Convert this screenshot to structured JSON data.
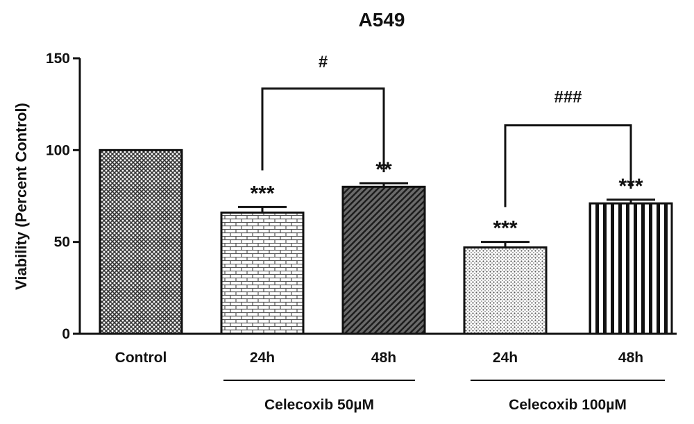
{
  "chart_data": {
    "type": "bar",
    "title": "A549",
    "ylabel": "Viability (Percent Control)",
    "xlabel": "",
    "ylim": [
      0,
      150
    ],
    "yticks": [
      0,
      50,
      100,
      150
    ],
    "categories": [
      "Control",
      "24h",
      "48h",
      "24h",
      "48h"
    ],
    "values": [
      100,
      66,
      80,
      47,
      71
    ],
    "errors": [
      0,
      3,
      2,
      3,
      2
    ],
    "significance": [
      "",
      "***",
      "**",
      "***",
      "***"
    ],
    "fill_patterns": [
      "crosshatch",
      "brick",
      "diagonal",
      "dots",
      "vertical-stripes"
    ],
    "groups": [
      {
        "label": "Celecoxib 50µM",
        "members": [
          1,
          2
        ]
      },
      {
        "label": "Celecoxib 100µM",
        "members": [
          3,
          4
        ]
      }
    ],
    "comparisons": [
      {
        "from": 1,
        "to": 2,
        "label": "#"
      },
      {
        "from": 3,
        "to": 4,
        "label": "###"
      }
    ],
    "grid": false
  }
}
